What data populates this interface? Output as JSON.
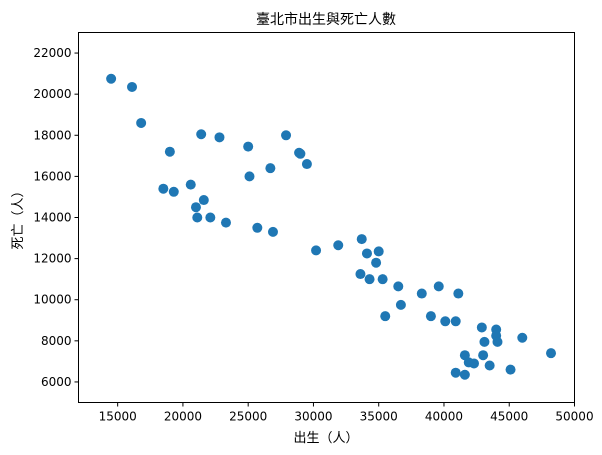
{
  "chart_data": {
    "type": "scatter",
    "title": "臺北市出生與死亡人數",
    "xlabel": "出生（人）",
    "ylabel": "死亡（人）",
    "xlim": [
      12000,
      50000
    ],
    "ylim": [
      5000,
      23000
    ],
    "xticks": [
      15000,
      20000,
      25000,
      30000,
      35000,
      40000,
      45000,
      50000
    ],
    "yticks": [
      6000,
      8000,
      10000,
      12000,
      14000,
      16000,
      18000,
      20000,
      22000
    ],
    "grid": false,
    "color": "#1f77b4",
    "points": [
      [
        14500,
        20750
      ],
      [
        16100,
        20350
      ],
      [
        16800,
        18600
      ],
      [
        19000,
        17200
      ],
      [
        21400,
        18050
      ],
      [
        22800,
        17900
      ],
      [
        25000,
        17450
      ],
      [
        27900,
        18000
      ],
      [
        28900,
        17150
      ],
      [
        29000,
        17100
      ],
      [
        29500,
        16600
      ],
      [
        26700,
        16400
      ],
      [
        25100,
        16000
      ],
      [
        18500,
        15400
      ],
      [
        19300,
        15250
      ],
      [
        20600,
        15600
      ],
      [
        21600,
        14850
      ],
      [
        21000,
        14500
      ],
      [
        21100,
        14000
      ],
      [
        22100,
        14000
      ],
      [
        23300,
        13750
      ],
      [
        25700,
        13500
      ],
      [
        26900,
        13300
      ],
      [
        30200,
        12400
      ],
      [
        31900,
        12650
      ],
      [
        33700,
        12950
      ],
      [
        34100,
        12250
      ],
      [
        35000,
        12350
      ],
      [
        34800,
        11800
      ],
      [
        33600,
        11250
      ],
      [
        34300,
        11000
      ],
      [
        35300,
        11000
      ],
      [
        36500,
        10650
      ],
      [
        39600,
        10650
      ],
      [
        38300,
        10300
      ],
      [
        41100,
        10300
      ],
      [
        36700,
        9750
      ],
      [
        35500,
        9200
      ],
      [
        39000,
        9200
      ],
      [
        40100,
        8950
      ],
      [
        40900,
        8950
      ],
      [
        42900,
        8650
      ],
      [
        44000,
        8550
      ],
      [
        44000,
        8250
      ],
      [
        46000,
        8150
      ],
      [
        43100,
        7950
      ],
      [
        44100,
        7950
      ],
      [
        48200,
        7400
      ],
      [
        41600,
        7300
      ],
      [
        43000,
        7300
      ],
      [
        41900,
        6950
      ],
      [
        42300,
        6900
      ],
      [
        43500,
        6800
      ],
      [
        45100,
        6600
      ],
      [
        40900,
        6450
      ],
      [
        41600,
        6350
      ]
    ]
  }
}
